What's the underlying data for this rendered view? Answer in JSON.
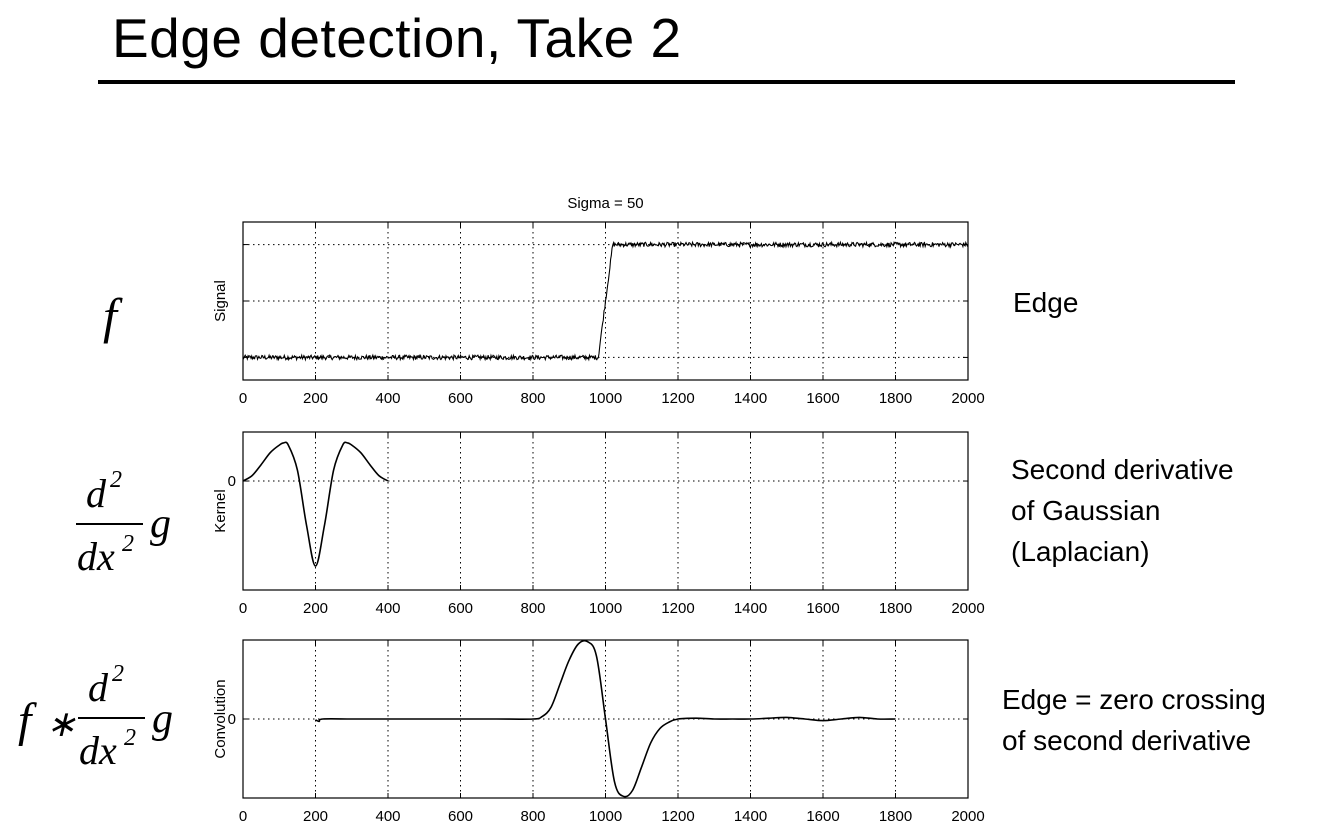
{
  "slide": {
    "title": "Edge detection, Take 2",
    "descriptions": {
      "edge": [
        "Edge"
      ],
      "kernel": [
        "Second derivative",
        "of Gaussian",
        "(Laplacian)"
      ],
      "convolution": [
        "Edge = zero crossing",
        "of second derivative"
      ]
    }
  },
  "chart_data": [
    {
      "type": "line",
      "title": "Sigma = 50",
      "ylabel": "Signal",
      "xlim": [
        0,
        2000
      ],
      "ylim": [
        -0.2,
        1.2
      ],
      "xticks": [
        0,
        200,
        400,
        600,
        800,
        1000,
        1200,
        1400,
        1600,
        1800,
        2000
      ],
      "yticks": [
        0,
        0.5,
        1
      ],
      "ytick_labels": [],
      "grid": true,
      "series": [
        {
          "x": [
            0,
            980,
            1020,
            2000
          ],
          "y": [
            0,
            0,
            1,
            1
          ],
          "noise": 0.02
        }
      ]
    },
    {
      "type": "line",
      "ylabel": "Kernel",
      "xlim": [
        0,
        2000
      ],
      "ylim": [
        -1.0,
        0.45
      ],
      "xticks": [
        0,
        200,
        400,
        600,
        800,
        1000,
        1200,
        1400,
        1600,
        1800,
        2000
      ],
      "yticks": [
        0
      ],
      "ytick_labels": [
        "0"
      ],
      "grid": true,
      "series": [
        {
          "x": [
            0,
            25,
            50,
            75,
            100,
            112,
            125,
            150,
            175,
            200,
            225,
            250,
            275,
            288,
            300,
            325,
            350,
            375,
            400
          ],
          "y": [
            0.0,
            0.05,
            0.15,
            0.26,
            0.33,
            0.35,
            0.33,
            0.1,
            -0.4,
            -0.78,
            -0.4,
            0.1,
            0.33,
            0.35,
            0.33,
            0.26,
            0.15,
            0.05,
            0.0
          ]
        }
      ]
    },
    {
      "type": "line",
      "ylabel": "Convolution",
      "xlim": [
        0,
        2000
      ],
      "ylim": [
        -1.0,
        1.0
      ],
      "xticks": [
        0,
        200,
        400,
        600,
        800,
        1000,
        1200,
        1400,
        1600,
        1800,
        2000
      ],
      "yticks": [
        0
      ],
      "ytick_labels": [
        "0"
      ],
      "grid": true,
      "series": [
        {
          "x": [
            200,
            210,
            220,
            300,
            400,
            500,
            600,
            700,
            800,
            825,
            850,
            875,
            900,
            925,
            950,
            975,
            1000,
            1025,
            1050,
            1075,
            1100,
            1125,
            1150,
            1175,
            1200,
            1250,
            1300,
            1350,
            1400,
            1450,
            1500,
            1550,
            1600,
            1650,
            1700,
            1750,
            1800
          ],
          "y": [
            -0.01,
            -0.03,
            0.0,
            0.0,
            0.0,
            0.0,
            0.0,
            0.0,
            0.0,
            0.03,
            0.15,
            0.45,
            0.75,
            0.95,
            0.98,
            0.8,
            0.0,
            -0.8,
            -0.98,
            -0.9,
            -0.6,
            -0.3,
            -0.12,
            -0.04,
            0.0,
            0.01,
            0.0,
            0.0,
            0.0,
            0.01,
            0.02,
            0.0,
            -0.02,
            0.0,
            0.02,
            0.0,
            0.0
          ]
        }
      ]
    }
  ]
}
